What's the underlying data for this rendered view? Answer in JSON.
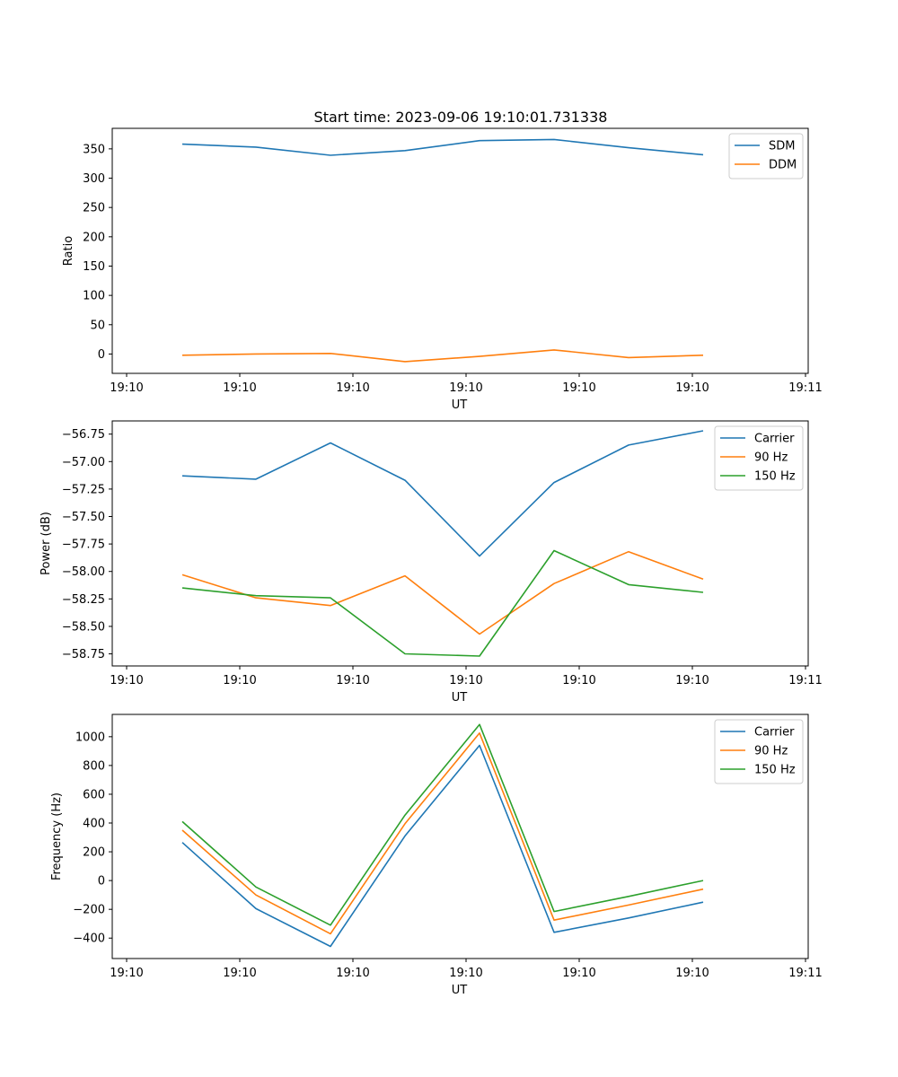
{
  "figure": {
    "title": "Start time: 2023-09-06 19:10:01.731338"
  },
  "chart_data": [
    {
      "type": "line",
      "title": "Start time: 2023-09-06 19:10:01.731338",
      "xlabel": "UT",
      "ylabel": "Ratio",
      "x_tick_labels": [
        "19:10",
        "19:10",
        "19:10",
        "19:10",
        "19:10",
        "19:10",
        "19:10",
        "19:11"
      ],
      "yticks": [
        0,
        50,
        100,
        150,
        200,
        250,
        300,
        350
      ],
      "ylim": [
        -33,
        385
      ],
      "legend_position": "upper-right",
      "series": [
        {
          "name": "SDM",
          "color": "#1f77b4",
          "values": [
            358,
            353,
            339,
            347,
            364,
            366,
            352,
            340
          ]
        },
        {
          "name": "DDM",
          "color": "#ff7f0e",
          "values": [
            -2,
            0,
            1,
            -13,
            -4,
            7,
            -6,
            -2
          ]
        }
      ]
    },
    {
      "type": "line",
      "xlabel": "UT",
      "ylabel": "Power (dB)",
      "x_tick_labels": [
        "19:10",
        "19:10",
        "19:10",
        "19:10",
        "19:10",
        "19:10",
        "19:10",
        "19:11"
      ],
      "yticks": [
        -58.75,
        -58.5,
        -58.25,
        -58.0,
        -57.75,
        -57.5,
        -57.25,
        -57.0,
        -56.75
      ],
      "ytick_labels": [
        "−58.75",
        "−58.50",
        "−58.25",
        "−58.00",
        "−57.75",
        "−57.50",
        "−57.25",
        "−57.00",
        "−56.75"
      ],
      "ylim": [
        -58.86,
        -56.63
      ],
      "legend_position": "upper-right",
      "series": [
        {
          "name": "Carrier",
          "color": "#1f77b4",
          "values": [
            -57.13,
            -57.16,
            -56.83,
            -57.17,
            -57.86,
            -57.19,
            -56.85,
            -56.72
          ]
        },
        {
          "name": "90 Hz",
          "color": "#ff7f0e",
          "values": [
            -58.03,
            -58.24,
            -58.31,
            -58.04,
            -58.57,
            -58.11,
            -57.82,
            -58.07
          ]
        },
        {
          "name": "150 Hz",
          "color": "#2ca02c",
          "values": [
            -58.15,
            -58.22,
            -58.24,
            -58.75,
            -58.77,
            -57.81,
            -58.12,
            -58.19
          ]
        }
      ]
    },
    {
      "type": "line",
      "xlabel": "UT",
      "ylabel": "Frequency (Hz)",
      "x_tick_labels": [
        "19:10",
        "19:10",
        "19:10",
        "19:10",
        "19:10",
        "19:10",
        "19:10",
        "19:11"
      ],
      "yticks": [
        -400,
        -200,
        0,
        200,
        400,
        600,
        800,
        1000
      ],
      "ytick_labels": [
        "−400",
        "−200",
        "0",
        "200",
        "400",
        "600",
        "800",
        "1000"
      ],
      "ylim": [
        -542,
        1155
      ],
      "legend_position": "upper-right",
      "series": [
        {
          "name": "Carrier",
          "color": "#1f77b4",
          "values": [
            265,
            -195,
            -458,
            310,
            940,
            -360,
            -260,
            -150
          ]
        },
        {
          "name": "90 Hz",
          "color": "#ff7f0e",
          "values": [
            350,
            -100,
            -370,
            395,
            1025,
            -275,
            -170,
            -60
          ]
        },
        {
          "name": "150 Hz",
          "color": "#2ca02c",
          "values": [
            410,
            -45,
            -310,
            455,
            1085,
            -215,
            -110,
            0
          ]
        }
      ]
    }
  ]
}
